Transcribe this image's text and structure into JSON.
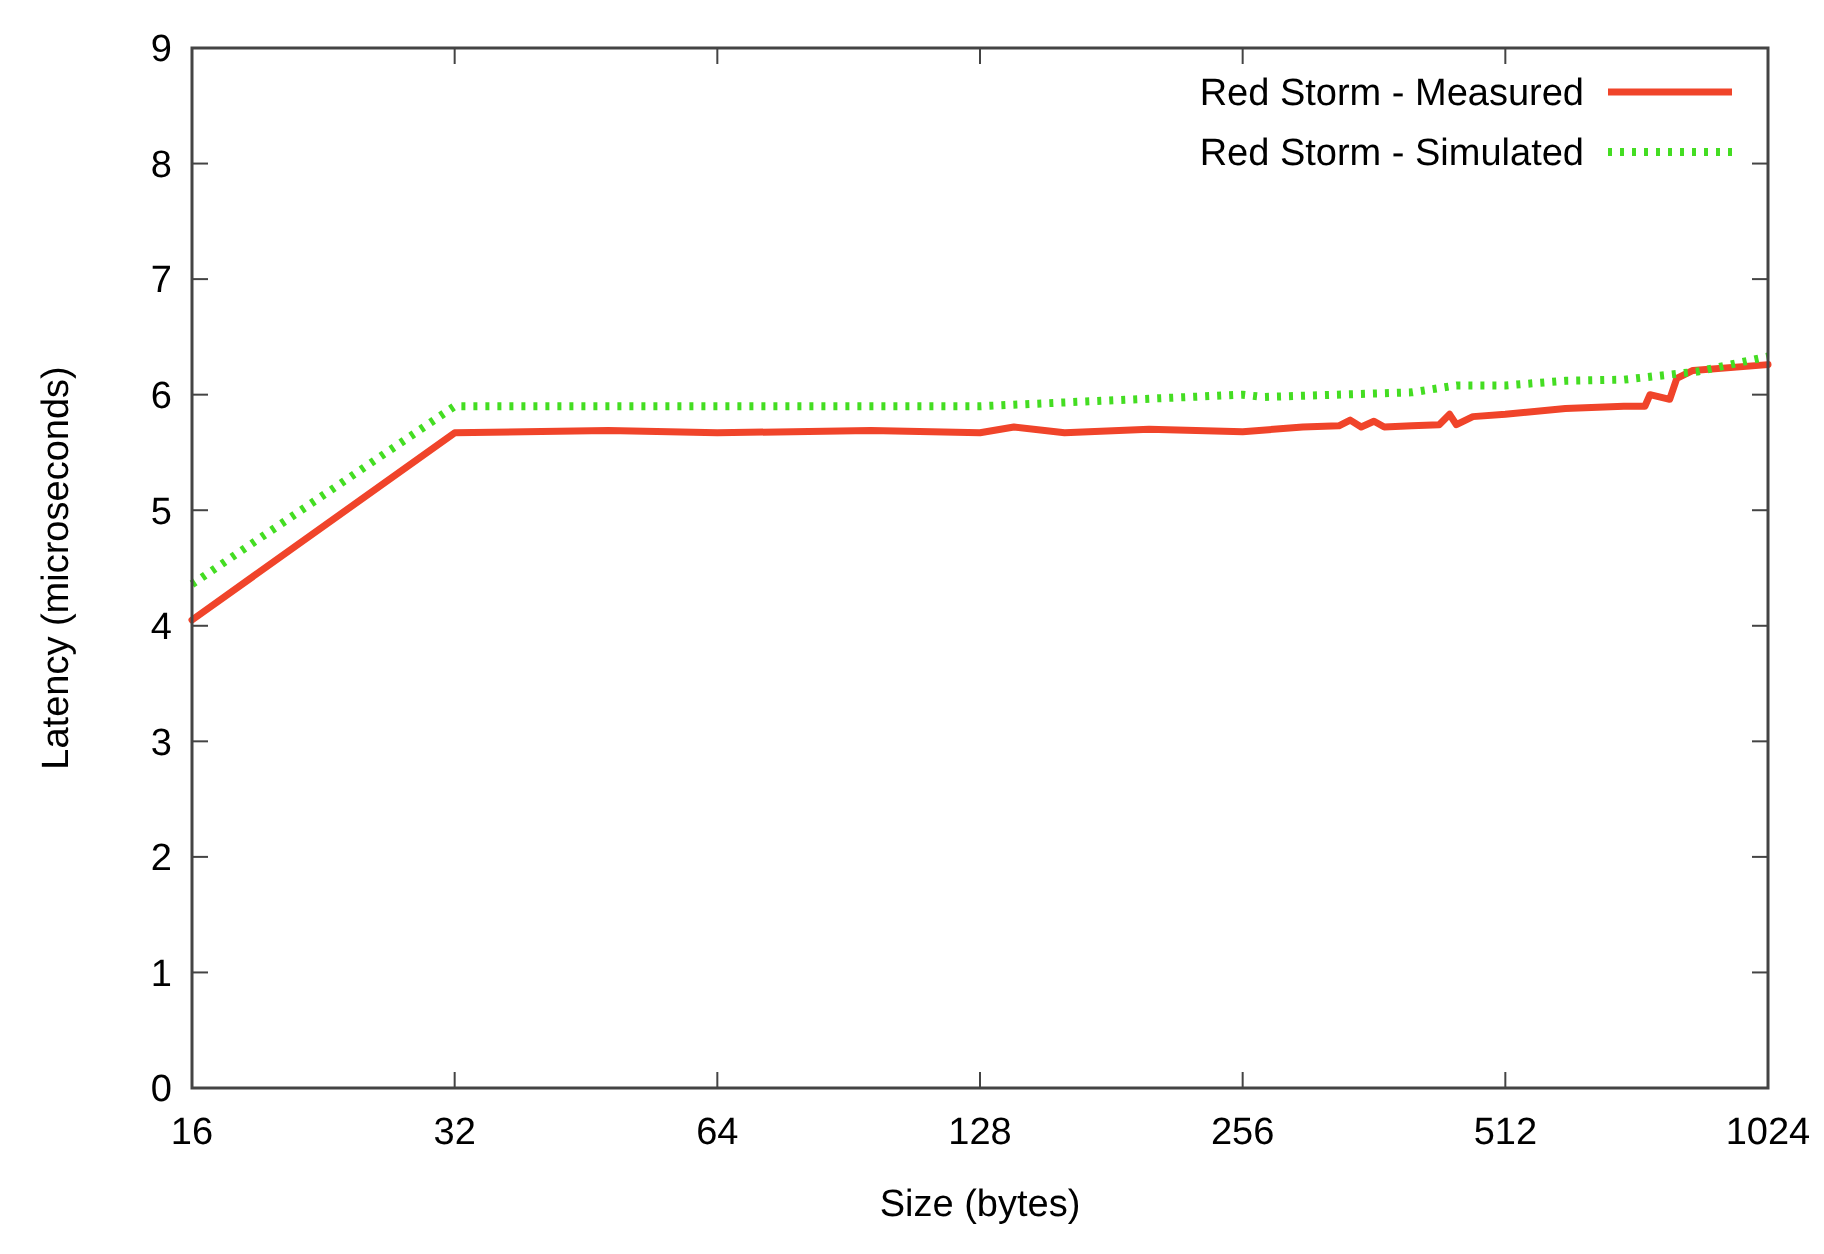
{
  "chart_data": {
    "type": "line",
    "xlabel": "Size (bytes)",
    "ylabel": "Latency (microseconds)",
    "log": "x",
    "xlim": [
      16,
      1024
    ],
    "xticks": [
      16,
      32,
      64,
      128,
      256,
      512,
      1024
    ],
    "ylim": [
      0,
      9
    ],
    "yticks": [
      0,
      1,
      2,
      3,
      4,
      5,
      6,
      7,
      8,
      9
    ],
    "grid": false,
    "legend": "top right",
    "series": [
      {
        "name": "Red Storm - Measured",
        "color": "#f0442a",
        "line_style": "solid",
        "x": [
          16,
          32,
          48,
          64,
          96,
          128,
          140,
          160,
          200,
          256,
          300,
          330,
          340,
          350,
          362,
          372,
          400,
          430,
          442,
          450,
          470,
          512,
          600,
          700,
          740,
          750,
          790,
          805,
          840,
          1024
        ],
        "values": [
          4.05,
          5.67,
          5.69,
          5.67,
          5.69,
          5.67,
          5.72,
          5.67,
          5.7,
          5.68,
          5.72,
          5.73,
          5.78,
          5.72,
          5.77,
          5.72,
          5.73,
          5.74,
          5.83,
          5.74,
          5.81,
          5.83,
          5.88,
          5.9,
          5.9,
          6.0,
          5.96,
          6.14,
          6.21,
          6.26
        ]
      },
      {
        "name": "Red Storm - Simulated",
        "color": "#44dd22",
        "line_style": "dotted",
        "x": [
          16,
          32,
          64,
          128,
          180,
          256,
          270,
          400,
          450,
          512,
          600,
          700,
          850,
          1024
        ],
        "values": [
          4.36,
          5.9,
          5.9,
          5.9,
          5.95,
          6.0,
          5.98,
          6.02,
          6.08,
          6.08,
          6.12,
          6.13,
          6.2,
          6.33
        ]
      }
    ]
  }
}
